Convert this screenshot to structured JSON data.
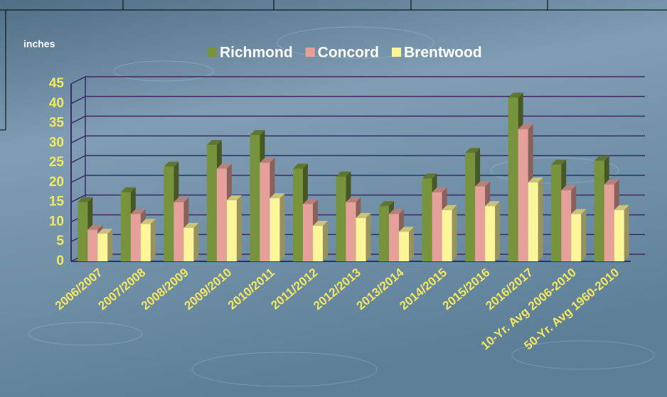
{
  "chart_data": {
    "type": "bar",
    "y_label": "inches",
    "categories": [
      "2006/2007",
      "2007/2008",
      "2008/2009",
      "2009/2010",
      "2010/2011",
      "2011/2012",
      "2012/2013",
      "2013/2014",
      "2014/2015",
      "2015/2016",
      "2016/2017",
      "10-Yr. Avg 2006-2010",
      "50-Yr. Avg 1960-2010"
    ],
    "series": [
      {
        "name": "Richmond",
        "color": "#77933c",
        "values": [
          15,
          17.5,
          24,
          29.5,
          32,
          23.5,
          21.5,
          14,
          21,
          27.5,
          41.5,
          24.5,
          25.5
        ]
      },
      {
        "name": "Concord",
        "color": "#e6a09a",
        "values": [
          8,
          12,
          15,
          23.5,
          25,
          14.5,
          15,
          12,
          17.5,
          19,
          33.5,
          18,
          19.5
        ]
      },
      {
        "name": "Brentwood",
        "color": "#fdf59a",
        "values": [
          7,
          9.5,
          8.5,
          15.5,
          16,
          9,
          11,
          7.5,
          13,
          14,
          20,
          12,
          13
        ]
      }
    ],
    "ylim": [
      0,
      45
    ],
    "yticks": [
      0,
      5,
      10,
      15,
      20,
      25,
      30,
      35,
      40,
      45
    ],
    "grid": true
  }
}
